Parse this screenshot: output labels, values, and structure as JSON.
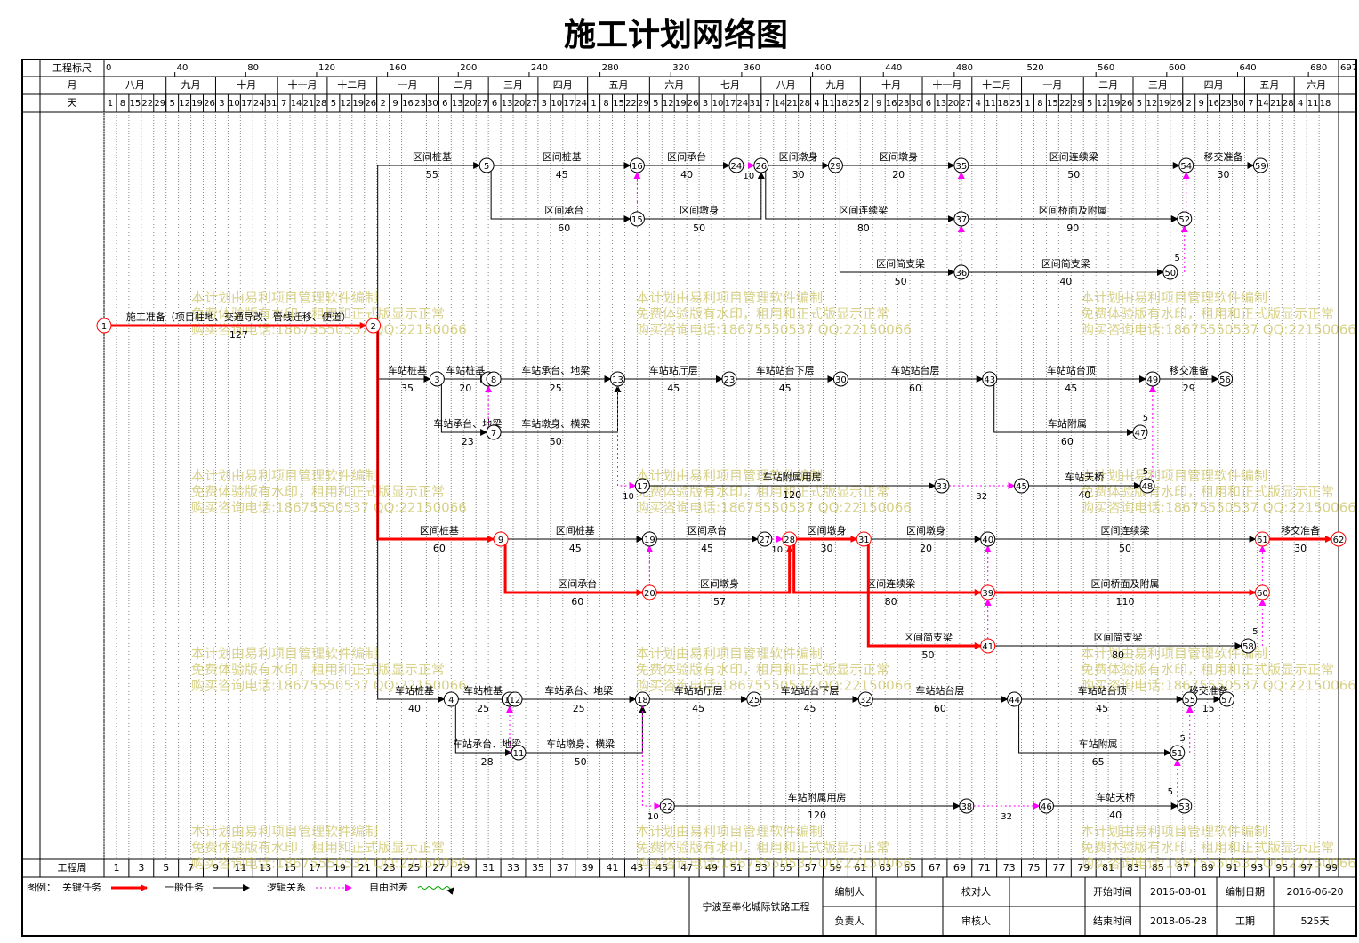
{
  "title": "施工计划网络图",
  "timescale": {
    "scale_label": "工程标尺",
    "scale_ticks": [
      0,
      40,
      80,
      120,
      160,
      200,
      240,
      280,
      320,
      360,
      400,
      440,
      480,
      520,
      560,
      600,
      640,
      680,
      697
    ],
    "month_label": "月",
    "months": [
      "八月",
      "九月",
      "十月",
      "十一月",
      "十二月",
      "一月",
      "二月",
      "三月",
      "四月",
      "五月",
      "六月",
      "七月",
      "八月",
      "九月",
      "十月",
      "十一月",
      "十二月",
      "一月",
      "二月",
      "三月",
      "四月",
      "五月",
      "六月"
    ],
    "day_label": "天",
    "days": [
      1,
      8,
      15,
      22,
      29,
      5,
      12,
      19,
      26,
      3,
      10,
      17,
      24,
      31,
      7,
      14,
      21,
      28,
      5,
      12,
      19,
      26,
      2,
      9,
      16,
      23,
      30,
      6,
      13,
      20,
      27,
      6,
      13,
      20,
      27,
      3,
      10,
      17,
      24,
      1,
      8,
      15,
      22,
      29,
      5,
      12,
      19,
      26,
      3,
      10,
      17,
      24,
      31,
      7,
      14,
      21,
      28,
      4,
      11,
      18,
      25,
      2,
      9,
      16,
      23,
      30,
      6,
      13,
      20,
      27,
      4,
      11,
      18,
      25,
      1,
      8,
      15,
      22,
      29,
      5,
      12,
      19,
      26,
      5,
      12,
      19,
      26,
      2,
      9,
      16,
      23,
      30,
      7,
      14,
      21,
      28,
      4,
      11,
      18
    ],
    "week_label": "工程周",
    "weeks": [
      1,
      3,
      5,
      7,
      9,
      11,
      13,
      15,
      17,
      19,
      21,
      23,
      25,
      27,
      29,
      31,
      33,
      35,
      37,
      39,
      41,
      43,
      45,
      47,
      49,
      51,
      53,
      55,
      57,
      59,
      61,
      63,
      65,
      67,
      69,
      71,
      73,
      75,
      77,
      79,
      81,
      83,
      85,
      87,
      89,
      91,
      93,
      95,
      97,
      99
    ]
  },
  "nodes": [
    {
      "id": 5,
      "day": 216,
      "critical": false
    },
    {
      "id": 16,
      "day": 301,
      "critical": false
    },
    {
      "id": 24,
      "day": 357,
      "critical": false
    },
    {
      "id": 26,
      "day": 371,
      "critical": false
    },
    {
      "id": 29,
      "day": 413,
      "critical": false
    },
    {
      "id": 35,
      "day": 484,
      "critical": false
    },
    {
      "id": 54,
      "day": 611,
      "critical": false
    },
    {
      "id": 59,
      "day": 653,
      "critical": false
    },
    {
      "id": 15,
      "day": 301,
      "critical": false
    },
    {
      "id": 37,
      "day": 484,
      "critical": false
    },
    {
      "id": 52,
      "day": 610,
      "critical": false
    },
    {
      "id": 36,
      "day": 484,
      "critical": false
    },
    {
      "id": 50,
      "day": 602,
      "critical": false
    },
    {
      "id": 1,
      "day": 0,
      "critical": true
    },
    {
      "id": 2,
      "day": 152,
      "critical": true
    },
    {
      "id": 3,
      "day": 188,
      "critical": false
    },
    {
      "id": 6,
      "day": 217,
      "critical": false
    },
    {
      "id": 8,
      "day": 220,
      "critical": false
    },
    {
      "id": 13,
      "day": 290,
      "critical": false
    },
    {
      "id": 23,
      "day": 353,
      "critical": false
    },
    {
      "id": 30,
      "day": 416,
      "critical": false
    },
    {
      "id": 43,
      "day": 500,
      "critical": false
    },
    {
      "id": 49,
      "day": 592,
      "critical": false
    },
    {
      "id": 56,
      "day": 633,
      "critical": false
    },
    {
      "id": 7,
      "day": 220,
      "critical": false
    },
    {
      "id": 47,
      "day": 585,
      "critical": false
    },
    {
      "id": 17,
      "day": 304,
      "critical": false
    },
    {
      "id": 33,
      "day": 473,
      "critical": false
    },
    {
      "id": 45,
      "day": 518,
      "critical": false
    },
    {
      "id": 48,
      "day": 589,
      "critical": false
    },
    {
      "id": 9,
      "day": 224,
      "critical": true
    },
    {
      "id": 19,
      "day": 308,
      "critical": false
    },
    {
      "id": 27,
      "day": 373,
      "critical": false
    },
    {
      "id": 28,
      "day": 387,
      "critical": true
    },
    {
      "id": 31,
      "day": 429,
      "critical": true
    },
    {
      "id": 40,
      "day": 499,
      "critical": false
    },
    {
      "id": 61,
      "day": 654,
      "critical": true
    },
    {
      "id": 62,
      "day": 697,
      "critical": true
    },
    {
      "id": 20,
      "day": 308,
      "critical": true
    },
    {
      "id": 39,
      "day": 499,
      "critical": true
    },
    {
      "id": 60,
      "day": 654,
      "critical": true
    },
    {
      "id": 41,
      "day": 499,
      "critical": true
    },
    {
      "id": 58,
      "day": 646,
      "critical": false
    },
    {
      "id": 4,
      "day": 196,
      "critical": false
    },
    {
      "id": 10,
      "day": 229,
      "critical": false
    },
    {
      "id": 12,
      "day": 232,
      "critical": false
    },
    {
      "id": 18,
      "day": 304,
      "critical": false
    },
    {
      "id": 25,
      "day": 367,
      "critical": false
    },
    {
      "id": 32,
      "day": 430,
      "critical": false
    },
    {
      "id": 44,
      "day": 514,
      "critical": false
    },
    {
      "id": 55,
      "day": 613,
      "critical": false
    },
    {
      "id": 57,
      "day": 634,
      "critical": false
    },
    {
      "id": 11,
      "day": 234,
      "critical": false
    },
    {
      "id": 51,
      "day": 606,
      "critical": false
    },
    {
      "id": 22,
      "day": 318,
      "critical": false
    },
    {
      "id": 38,
      "day": 487,
      "critical": false
    },
    {
      "id": 46,
      "day": 532,
      "critical": false
    },
    {
      "id": 53,
      "day": 610,
      "critical": false
    }
  ],
  "edges": [
    {
      "from": 1,
      "to": 2,
      "kind": "critical",
      "name": "施工准备（项目驻地、交通导改、管线迁移、便道）",
      "duration": 127
    },
    {
      "from": 2,
      "to": 5,
      "kind": "normal",
      "name": "区间桩基",
      "duration": 55
    },
    {
      "from": 5,
      "to": 16,
      "kind": "normal",
      "name": "区间桩基",
      "duration": 45
    },
    {
      "from": 5,
      "to": 15,
      "kind": "normal",
      "name": "区间承台",
      "duration": 60
    },
    {
      "from": 16,
      "to": 24,
      "kind": "normal",
      "name": "区间承台",
      "duration": 40
    },
    {
      "from": 15,
      "to": 26,
      "kind": "normal",
      "name": "区间墩身",
      "duration": 50
    },
    {
      "from": 26,
      "to": 29,
      "kind": "normal",
      "name": "区间墩身",
      "duration": 30
    },
    {
      "from": 29,
      "to": 35,
      "kind": "normal",
      "name": "区间墩身",
      "duration": 20
    },
    {
      "from": 26,
      "to": 37,
      "kind": "normal",
      "name": "区间连续梁",
      "duration": 80
    },
    {
      "from": 29,
      "to": 36,
      "kind": "normal",
      "name": "区间简支梁",
      "duration": 50
    },
    {
      "from": 35,
      "to": 54,
      "kind": "normal",
      "name": "区间连续梁",
      "duration": 50
    },
    {
      "from": 37,
      "to": 52,
      "kind": "normal",
      "name": "区间桥面及附属",
      "duration": 90
    },
    {
      "from": 36,
      "to": 50,
      "kind": "normal",
      "name": "区间简支梁",
      "duration": 40
    },
    {
      "from": 54,
      "to": 59,
      "kind": "normal",
      "name": "移交准备",
      "duration": 30
    },
    {
      "from": 2,
      "to": 3,
      "kind": "normal",
      "name": "车站桩基",
      "duration": 35
    },
    {
      "from": 3,
      "to": 8,
      "kind": "normal",
      "name": "车站桩基",
      "duration": 20
    },
    {
      "from": 3,
      "to": 7,
      "kind": "normal",
      "name": "车站承台、地梁",
      "duration": 23
    },
    {
      "from": 8,
      "to": 13,
      "kind": "normal",
      "name": "车站承台、地梁",
      "duration": 25
    },
    {
      "from": 7,
      "to": 13,
      "kind": "normal",
      "name": "车站墩身、横梁",
      "duration": 50
    },
    {
      "from": 13,
      "to": 23,
      "kind": "normal",
      "name": "车站站厅层",
      "duration": 45
    },
    {
      "from": 23,
      "to": 30,
      "kind": "normal",
      "name": "车站站台下层",
      "duration": 45
    },
    {
      "from": 30,
      "to": 43,
      "kind": "normal",
      "name": "车站站台层",
      "duration": 60
    },
    {
      "from": 43,
      "to": 49,
      "kind": "normal",
      "name": "车站站台顶",
      "duration": 45
    },
    {
      "from": 43,
      "to": 47,
      "kind": "normal",
      "name": "车站附属",
      "duration": 60
    },
    {
      "from": 49,
      "to": 56,
      "kind": "normal",
      "name": "移交准备",
      "duration": 29
    },
    {
      "from": 17,
      "to": 33,
      "kind": "normal",
      "name": "车站附属用房",
      "duration": 120
    },
    {
      "from": 45,
      "to": 48,
      "kind": "normal",
      "name": "车站天桥",
      "duration": 40
    },
    {
      "from": 2,
      "to": 9,
      "kind": "critical",
      "name": "区间桩基",
      "duration": 60
    },
    {
      "from": 9,
      "to": 19,
      "kind": "normal",
      "name": "区间桩基",
      "duration": 45
    },
    {
      "from": 9,
      "to": 20,
      "kind": "critical",
      "name": "区间承台",
      "duration": 60
    },
    {
      "from": 19,
      "to": 27,
      "kind": "normal",
      "name": "区间承台",
      "duration": 45
    },
    {
      "from": 20,
      "to": 28,
      "kind": "critical",
      "name": "区间墩身",
      "duration": 57
    },
    {
      "from": 28,
      "to": 31,
      "kind": "critical",
      "name": "区间墩身",
      "duration": 30
    },
    {
      "from": 28,
      "to": 39,
      "kind": "critical",
      "name": "区间连续梁",
      "duration": 80
    },
    {
      "from": 31,
      "to": 40,
      "kind": "normal",
      "name": "区间墩身",
      "duration": 20
    },
    {
      "from": 31,
      "to": 41,
      "kind": "critical",
      "name": "区间简支梁",
      "duration": 50
    },
    {
      "from": 40,
      "to": 61,
      "kind": "normal",
      "name": "区间连续梁",
      "duration": 50
    },
    {
      "from": 39,
      "to": 60,
      "kind": "critical",
      "name": "区间桥面及附属",
      "duration": 110
    },
    {
      "from": 41,
      "to": 58,
      "kind": "normal",
      "name": "区间简支梁",
      "duration": 80
    },
    {
      "from": 61,
      "to": 62,
      "kind": "critical",
      "name": "移交准备",
      "duration": 30
    },
    {
      "from": 2,
      "to": 4,
      "kind": "normal",
      "name": "车站桩基",
      "duration": 40
    },
    {
      "from": 4,
      "to": 12,
      "kind": "normal",
      "name": "车站桩基",
      "duration": 25
    },
    {
      "from": 4,
      "to": 11,
      "kind": "normal",
      "name": "车站承台、地梁",
      "duration": 28
    },
    {
      "from": 12,
      "to": 18,
      "kind": "normal",
      "name": "车站承台、地梁",
      "duration": 25
    },
    {
      "from": 11,
      "to": 18,
      "kind": "normal",
      "name": "车站墩身、横梁",
      "duration": 50
    },
    {
      "from": 18,
      "to": 25,
      "kind": "normal",
      "name": "车站站厅层",
      "duration": 45
    },
    {
      "from": 25,
      "to": 32,
      "kind": "normal",
      "name": "车站站台下层",
      "duration": 45
    },
    {
      "from": 32,
      "to": 44,
      "kind": "normal",
      "name": "车站站台层",
      "duration": 60
    },
    {
      "from": 44,
      "to": 55,
      "kind": "normal",
      "name": "车站站台顶",
      "duration": 45
    },
    {
      "from": 44,
      "to": 51,
      "kind": "normal",
      "name": "车站附属",
      "duration": 65
    },
    {
      "from": 55,
      "to": 57,
      "kind": "normal",
      "name": "移交准备",
      "duration": 15
    },
    {
      "from": 22,
      "to": 38,
      "kind": "normal",
      "name": "车站附属用房",
      "duration": 120
    },
    {
      "from": 46,
      "to": 53,
      "kind": "normal",
      "name": "车站天桥",
      "duration": 40
    },
    {
      "from": 24,
      "to": 26,
      "kind": "logic",
      "lag": 10
    },
    {
      "from": 27,
      "to": 28,
      "kind": "logic",
      "lag": 10
    },
    {
      "from": 13,
      "to": 17,
      "kind": "logic",
      "lag": 10
    },
    {
      "from": 18,
      "to": 22,
      "kind": "logic",
      "lag": 10
    },
    {
      "from": 33,
      "to": 45,
      "kind": "logic",
      "lag": 32
    },
    {
      "from": 38,
      "to": 46,
      "kind": "logic",
      "lag": 32
    },
    {
      "from": 47,
      "to": 49,
      "kind": "logic",
      "lag": 5
    },
    {
      "from": 48,
      "to": 49,
      "kind": "logic",
      "lag": 5
    },
    {
      "from": 51,
      "to": 55,
      "kind": "logic",
      "lag": 5
    },
    {
      "from": 53,
      "to": 51,
      "kind": "logic",
      "lag": 5
    },
    {
      "from": 50,
      "to": 52,
      "kind": "logic",
      "lag": 5
    },
    {
      "from": 58,
      "to": 60,
      "kind": "logic",
      "lag": 5
    },
    {
      "from": 7,
      "to": 6,
      "kind": "logic"
    },
    {
      "from": 11,
      "to": 10,
      "kind": "logic"
    },
    {
      "from": 15,
      "to": 16,
      "kind": "logic"
    },
    {
      "from": 37,
      "to": 35,
      "kind": "logic"
    },
    {
      "from": 36,
      "to": 37,
      "kind": "logic"
    },
    {
      "from": 20,
      "to": 19,
      "kind": "logic"
    },
    {
      "from": 39,
      "to": 40,
      "kind": "logic"
    },
    {
      "from": 41,
      "to": 39,
      "kind": "logic"
    },
    {
      "from": 52,
      "to": 54,
      "kind": "logic"
    },
    {
      "from": 60,
      "to": 61,
      "kind": "logic"
    }
  ],
  "watermark": [
    "本计划由易利项目管理软件编制",
    "免费体验版有水印，租用和正式版显示正常",
    "购买咨询电话:18675550537 QQ:22150066"
  ],
  "legend": {
    "title": "图例：",
    "items": [
      {
        "label": "关键任务",
        "kind": "critical"
      },
      {
        "label": "一般任务",
        "kind": "normal"
      },
      {
        "label": "逻辑关系",
        "kind": "logic"
      },
      {
        "label": "自由时差",
        "kind": "float"
      }
    ]
  },
  "info": {
    "project": "宁波至奉化城际铁路工程",
    "rows": [
      [
        "编制人",
        "",
        "校对人",
        "",
        "开始时间",
        "2016-08-01",
        "编制日期",
        "2016-06-20"
      ],
      [
        "负责人",
        "",
        "审核人",
        "",
        "结束时间",
        "2018-06-28",
        "工期",
        "525天"
      ]
    ]
  }
}
